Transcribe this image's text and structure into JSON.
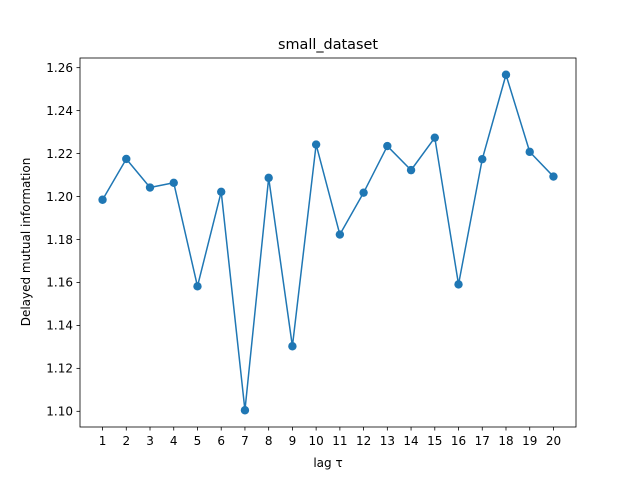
{
  "chart_data": {
    "type": "line",
    "title": "small_dataset",
    "xlabel": "lag τ",
    "ylabel": "Delayed mutual information",
    "x": [
      1,
      2,
      3,
      4,
      5,
      6,
      7,
      8,
      9,
      10,
      11,
      12,
      13,
      14,
      15,
      16,
      17,
      18,
      19,
      20
    ],
    "series": [
      {
        "values": [
          1.1985,
          1.2175,
          1.2042,
          1.2064,
          1.1582,
          1.2022,
          1.1005,
          1.2087,
          1.1303,
          1.2242,
          1.1823,
          1.2018,
          1.2235,
          1.2123,
          1.2274,
          1.1591,
          1.2174,
          1.2567,
          1.2208,
          1.2093
        ],
        "color": "#1f77b4",
        "marker": "circle"
      }
    ],
    "xlim": [
      0.05,
      20.95
    ],
    "ylim": [
      1.0927,
      1.2645
    ],
    "xticks": [
      "1",
      "2",
      "3",
      "4",
      "5",
      "6",
      "7",
      "8",
      "9",
      "10",
      "11",
      "12",
      "13",
      "14",
      "15",
      "16",
      "17",
      "18",
      "19",
      "20"
    ],
    "yticks": [
      1.1,
      1.12,
      1.14,
      1.16,
      1.18,
      1.2,
      1.22,
      1.24,
      1.26
    ],
    "ytick_labels": [
      "1.10",
      "1.12",
      "1.14",
      "1.16",
      "1.18",
      "1.20",
      "1.22",
      "1.24",
      "1.26"
    ],
    "grid": false,
    "legend": "none"
  }
}
